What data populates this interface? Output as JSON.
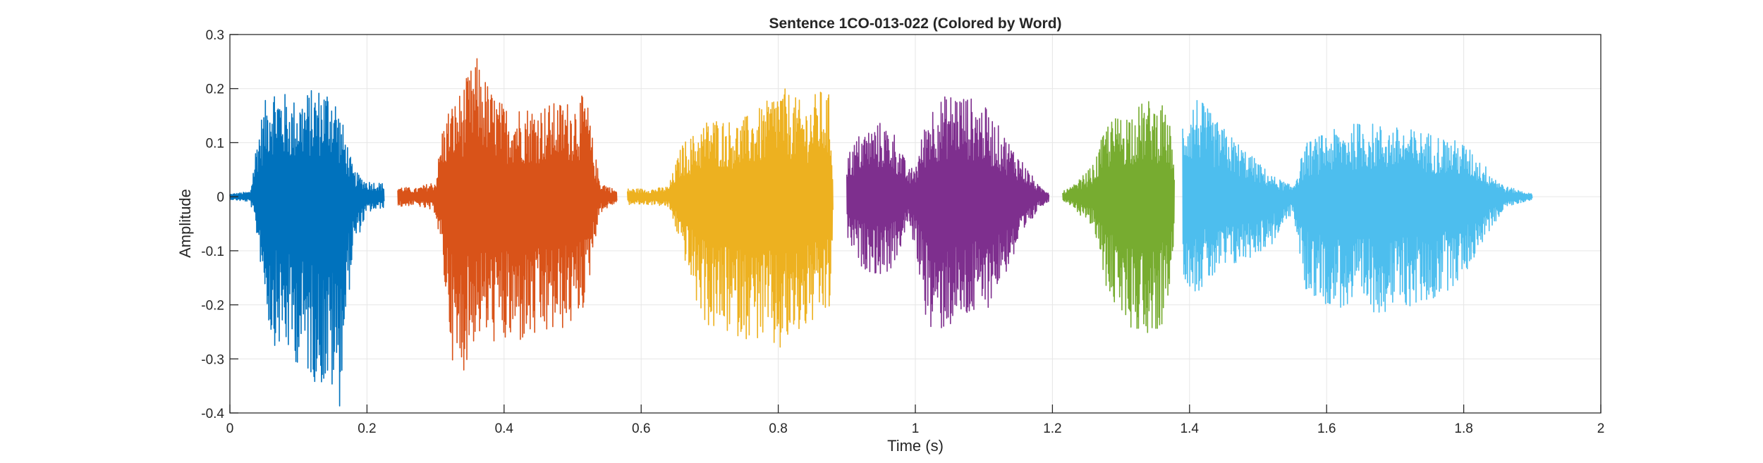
{
  "chart_data": {
    "type": "line",
    "title": "Sentence 1CO-013-022 (Colored by Word)",
    "xlabel": "Time (s)",
    "ylabel": "Amplitude",
    "xlim": [
      0,
      2
    ],
    "ylim": [
      -0.4,
      0.3
    ],
    "xticks": [
      0,
      0.2,
      0.4,
      0.6,
      0.8,
      1,
      1.2,
      1.4,
      1.6,
      1.8,
      2
    ],
    "xtick_labels": [
      "0",
      "0.2",
      "0.4",
      "0.6",
      "0.8",
      "1",
      "1.2",
      "1.4",
      "1.6",
      "1.8",
      "2"
    ],
    "yticks": [
      -0.4,
      -0.3,
      -0.2,
      -0.1,
      0,
      0.1,
      0.2,
      0.3
    ],
    "ytick_labels": [
      "-0.4",
      "-0.3",
      "-0.2",
      "-0.1",
      "0",
      "0.1",
      "0.2",
      "0.3"
    ],
    "grid": true,
    "series": [
      {
        "color": "#0072BD",
        "x": [
          0.0,
          0.03,
          0.04,
          0.06,
          0.09,
          0.12,
          0.15,
          0.16,
          0.17,
          0.18,
          0.2,
          0.225
        ],
        "upper": [
          0.005,
          0.01,
          0.12,
          0.22,
          0.18,
          0.2,
          0.21,
          0.16,
          0.11,
          0.05,
          0.03,
          0.025
        ],
        "lower": [
          -0.005,
          -0.01,
          -0.08,
          -0.27,
          -0.3,
          -0.34,
          -0.37,
          -0.39,
          -0.23,
          -0.1,
          -0.03,
          -0.02
        ]
      },
      {
        "color": "#D95319",
        "x": [
          0.245,
          0.27,
          0.3,
          0.31,
          0.32,
          0.33,
          0.36,
          0.38,
          0.4,
          0.45,
          0.5,
          0.52,
          0.53,
          0.54,
          0.565
        ],
        "upper": [
          0.02,
          0.015,
          0.03,
          0.13,
          0.17,
          0.18,
          0.26,
          0.2,
          0.17,
          0.17,
          0.18,
          0.19,
          0.1,
          0.03,
          0.01
        ],
        "lower": [
          -0.02,
          -0.015,
          -0.03,
          -0.13,
          -0.25,
          -0.36,
          -0.26,
          -0.27,
          -0.28,
          -0.27,
          -0.24,
          -0.2,
          -0.1,
          -0.03,
          -0.01
        ]
      },
      {
        "color": "#EDB120",
        "x": [
          0.58,
          0.62,
          0.64,
          0.66,
          0.68,
          0.7,
          0.74,
          0.78,
          0.8,
          0.82,
          0.84,
          0.86,
          0.875,
          0.88
        ],
        "upper": [
          0.015,
          0.015,
          0.02,
          0.1,
          0.12,
          0.15,
          0.14,
          0.17,
          0.21,
          0.19,
          0.17,
          0.2,
          0.19,
          0.05
        ],
        "lower": [
          -0.015,
          -0.015,
          -0.02,
          -0.1,
          -0.2,
          -0.25,
          -0.26,
          -0.27,
          -0.3,
          -0.27,
          -0.25,
          -0.23,
          -0.22,
          -0.05
        ]
      },
      {
        "color": "#7E2F8E",
        "x": [
          0.9,
          0.92,
          0.95,
          0.97,
          0.99,
          1.0,
          1.02,
          1.06,
          1.1,
          1.15,
          1.18,
          1.195
        ],
        "upper": [
          0.08,
          0.12,
          0.14,
          0.12,
          0.05,
          0.06,
          0.17,
          0.2,
          0.17,
          0.08,
          0.02,
          0.01
        ],
        "lower": [
          -0.08,
          -0.13,
          -0.15,
          -0.13,
          -0.05,
          -0.1,
          -0.26,
          -0.24,
          -0.22,
          -0.1,
          -0.02,
          -0.01
        ]
      },
      {
        "color": "#77AC30",
        "x": [
          1.215,
          1.23,
          1.26,
          1.28,
          1.31,
          1.34,
          1.36,
          1.375,
          1.378
        ],
        "upper": [
          0.01,
          0.02,
          0.06,
          0.14,
          0.16,
          0.18,
          0.17,
          0.12,
          0.03
        ],
        "lower": [
          -0.01,
          -0.02,
          -0.06,
          -0.18,
          -0.24,
          -0.26,
          -0.24,
          -0.15,
          -0.03
        ]
      },
      {
        "color": "#4DBEEE",
        "x": [
          1.39,
          1.41,
          1.44,
          1.48,
          1.52,
          1.55,
          1.57,
          1.6,
          1.65,
          1.7,
          1.75,
          1.8,
          1.83,
          1.86,
          1.9
        ],
        "upper": [
          0.15,
          0.19,
          0.14,
          0.09,
          0.04,
          0.02,
          0.1,
          0.12,
          0.14,
          0.13,
          0.12,
          0.1,
          0.06,
          0.02,
          0.005
        ],
        "lower": [
          -0.15,
          -0.18,
          -0.15,
          -0.12,
          -0.09,
          -0.03,
          -0.18,
          -0.2,
          -0.22,
          -0.21,
          -0.2,
          -0.15,
          -0.08,
          -0.02,
          -0.005
        ]
      }
    ]
  }
}
